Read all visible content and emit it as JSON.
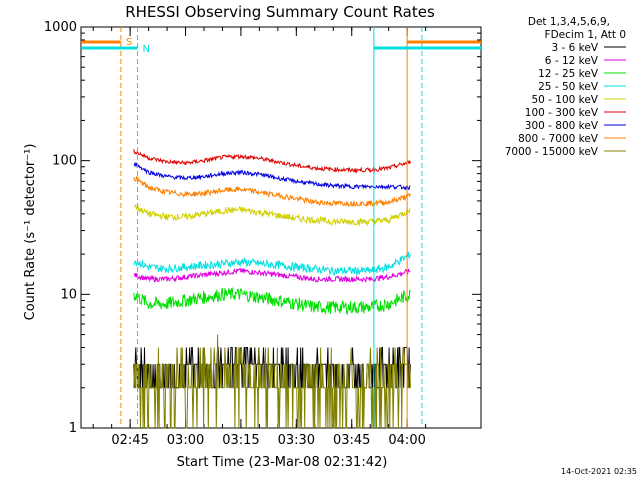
{
  "chart_data": {
    "type": "line",
    "title": "RHESSI Observing Summary Count Rates",
    "xlabel": "Start Time (23-Mar-08 02:31:42)",
    "ylabel": "Count Rate (s⁻¹ detector⁻¹)",
    "yscale": "log",
    "ylim": [
      1,
      1000
    ],
    "xlim": [
      "02:31:42",
      "04:20:00"
    ],
    "y_ticks": [
      "1",
      "10",
      "100",
      "1000"
    ],
    "x_ticks": [
      "02:45",
      "03:00",
      "03:15",
      "03:30",
      "03:45",
      "04:00"
    ],
    "x_tick_minutes": [
      45,
      60,
      75,
      90,
      105,
      120
    ],
    "legend_header": [
      "Det 1,3,4,5,6,9,",
      "FDecim 1, Att 0"
    ],
    "timestamp": "14-Oct-2021 02:35",
    "flag_labels": [
      "S",
      "N"
    ],
    "x_minutes": [
      46,
      50,
      55,
      60,
      65,
      70,
      75,
      80,
      85,
      90,
      95,
      100,
      105,
      110,
      115,
      121
    ],
    "series": [
      {
        "name": "3 - 6 keV",
        "color": "#000000",
        "values": [
          3,
          2.5,
          2.5,
          2.7,
          2.8,
          3,
          3.5,
          3,
          2.8,
          2.7,
          2.7,
          2.6,
          2.6,
          2.6,
          2.8,
          3
        ]
      },
      {
        "name": "6 - 12 keV",
        "color": "#e000e0",
        "values": [
          14,
          13,
          13,
          13.5,
          14,
          14.5,
          15,
          14.5,
          14,
          13.5,
          13,
          13,
          13,
          13,
          13.5,
          15
        ]
      },
      {
        "name": "12 - 25 keV",
        "color": "#00e000",
        "values": [
          10,
          8.5,
          8.5,
          9,
          9.5,
          10,
          10,
          9.5,
          9,
          8.5,
          8,
          8,
          8,
          8,
          8.5,
          10
        ]
      },
      {
        "name": "25 - 50 keV",
        "color": "#00e0e0",
        "values": [
          18,
          16,
          15.5,
          16,
          16.5,
          17,
          17.5,
          17,
          16.5,
          16,
          15.5,
          15,
          15,
          15,
          16,
          20
        ]
      },
      {
        "name": "50 - 100 keV",
        "color": "#d0d000",
        "values": [
          46,
          40,
          38,
          38,
          40,
          42,
          43,
          41,
          39,
          37,
          36,
          35,
          35,
          35,
          36,
          43
        ]
      },
      {
        "name": "100 - 300 keV",
        "color": "#e00000",
        "values": [
          118,
          105,
          98,
          96,
          100,
          106,
          108,
          104,
          98,
          92,
          88,
          86,
          85,
          85,
          88,
          98
        ]
      },
      {
        "name": "300 - 800 keV",
        "color": "#0000e0",
        "values": [
          96,
          82,
          76,
          74,
          76,
          80,
          82,
          79,
          74,
          70,
          67,
          65,
          64,
          64,
          64,
          63
        ]
      },
      {
        "name": "800 - 7000 keV",
        "color": "#ff8000",
        "values": [
          75,
          63,
          58,
          56,
          57,
          60,
          61,
          58,
          55,
          52,
          49,
          48,
          48,
          48,
          49,
          55
        ]
      },
      {
        "name": "7000 - 15000 keV",
        "color": "#808000",
        "values": [
          2.5,
          2,
          2,
          2.2,
          2.4,
          2.6,
          2.6,
          2.4,
          2.3,
          2.2,
          2.1,
          2,
          2,
          2,
          2.2,
          2.5
        ]
      }
    ],
    "markers": [
      {
        "label": "S",
        "color": "#ff8000",
        "style": "dashed",
        "x_minute": 42.5
      },
      {
        "label": "N",
        "color": "#00e0e0",
        "style": "dashed",
        "x_minute": 47
      },
      {
        "label": "",
        "color": "#00e0e0",
        "style": "solid",
        "x_minute": 111
      },
      {
        "label": "",
        "color": "#ff8000",
        "style": "solid",
        "x_minute": 120
      },
      {
        "label": "",
        "color": "#00e0e0",
        "style": "dashed",
        "x_minute": 124
      }
    ]
  }
}
